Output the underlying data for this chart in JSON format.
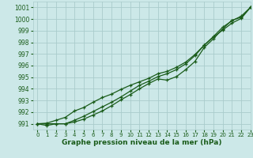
{
  "title": "Graphe pression niveau de la mer (hPa)",
  "bg_color": "#cce8e8",
  "grid_color": "#aacccc",
  "line_color": "#1a5c1a",
  "marker_color": "#1a5c1a",
  "xlim": [
    -0.5,
    23
  ],
  "ylim": [
    990.5,
    1001.5
  ],
  "yticks": [
    991,
    992,
    993,
    994,
    995,
    996,
    997,
    998,
    999,
    1000,
    1001
  ],
  "xticks": [
    0,
    1,
    2,
    3,
    4,
    5,
    6,
    7,
    8,
    9,
    10,
    11,
    12,
    13,
    14,
    15,
    16,
    17,
    18,
    19,
    20,
    21,
    22,
    23
  ],
  "series1": [
    991.0,
    990.85,
    991.0,
    991.0,
    991.15,
    991.4,
    991.75,
    992.1,
    992.55,
    993.05,
    993.5,
    994.0,
    994.45,
    994.85,
    994.75,
    995.05,
    995.65,
    996.35,
    997.55,
    998.3,
    999.15,
    999.9,
    1000.15,
    1001.0
  ],
  "series2": [
    991.0,
    991.0,
    991.0,
    991.0,
    991.3,
    991.65,
    992.05,
    992.45,
    992.85,
    993.3,
    993.8,
    994.3,
    994.65,
    995.05,
    995.3,
    995.65,
    996.15,
    996.85,
    997.75,
    998.5,
    999.3,
    999.85,
    1000.25,
    1001.0
  ],
  "series3": [
    991.0,
    991.05,
    991.3,
    991.55,
    992.1,
    992.4,
    992.85,
    993.25,
    993.55,
    993.95,
    994.3,
    994.6,
    994.9,
    995.3,
    995.5,
    995.85,
    996.3,
    996.95,
    997.75,
    998.45,
    999.05,
    999.65,
    1000.05,
    1001.0
  ],
  "title_fontsize": 6.5,
  "tick_fontsize": 5.5
}
